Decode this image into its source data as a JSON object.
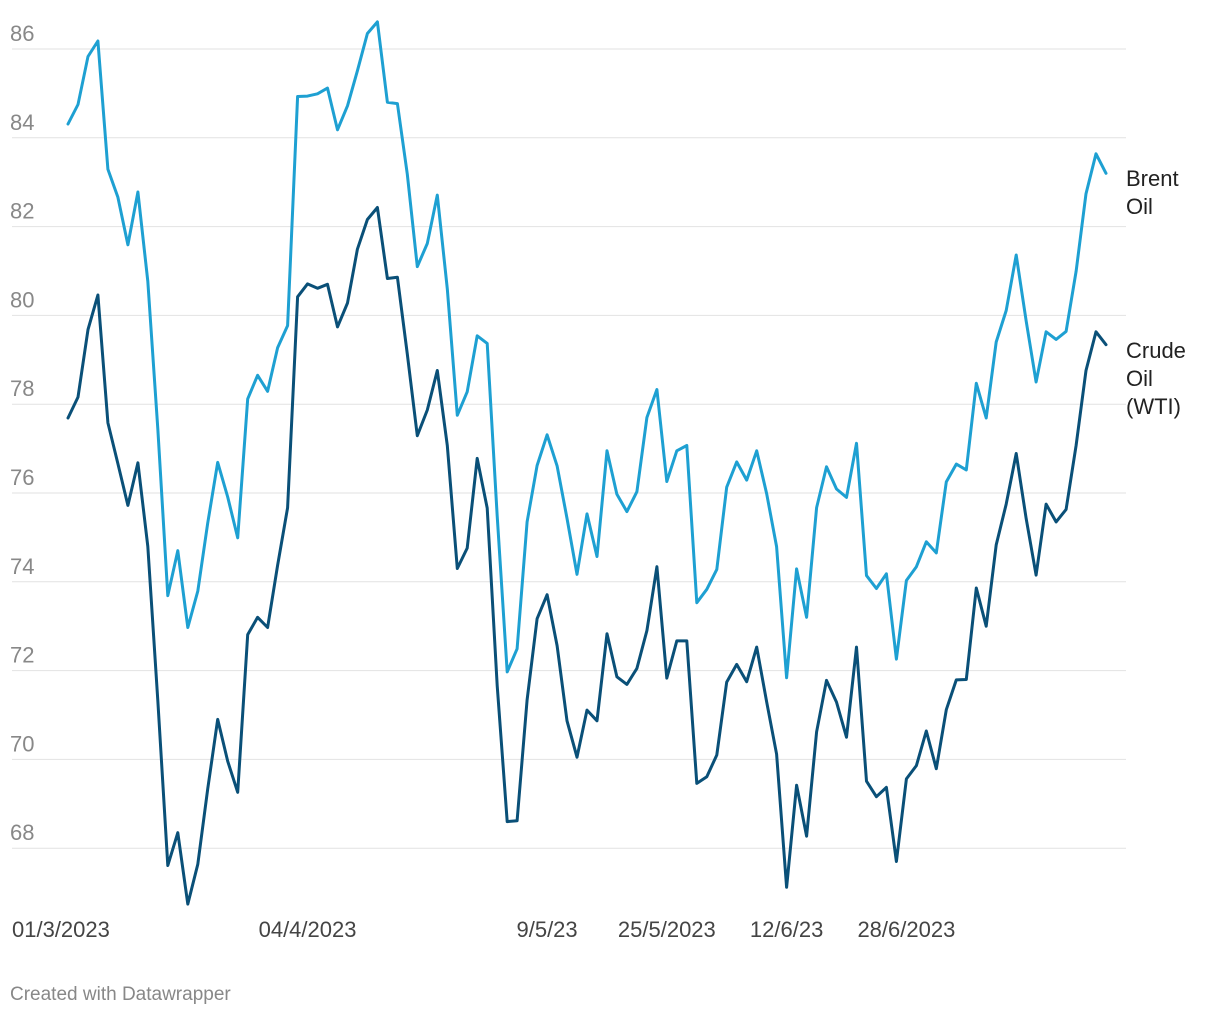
{
  "chart_data": {
    "type": "line",
    "title": "",
    "xlabel": "",
    "ylabel": "",
    "ylim": [
      66.5,
      87
    ],
    "yticks": [
      68,
      70,
      72,
      74,
      76,
      78,
      80,
      82,
      84,
      86
    ],
    "grid": true,
    "x_tick_labels": [
      {
        "label": "01/3/2023",
        "index": 0
      },
      {
        "label": "04/4/2023",
        "index": 24
      },
      {
        "label": "9/5/23",
        "index": 48
      },
      {
        "label": "25/5/2023",
        "index": 60
      },
      {
        "label": "12/6/23",
        "index": 72
      },
      {
        "label": "28/6/2023",
        "index": 84
      }
    ],
    "series": [
      {
        "name": "Brent Oil",
        "color": "#1ea0d2",
        "values": [
          84.31,
          84.75,
          85.83,
          86.18,
          83.29,
          82.66,
          81.59,
          82.78,
          80.77,
          77.45,
          73.69,
          74.7,
          72.97,
          73.79,
          75.32,
          76.69,
          75.91,
          74.99,
          78.12,
          78.65,
          78.29,
          79.27,
          79.77,
          84.93,
          84.94,
          84.99,
          85.12,
          84.18,
          84.72,
          85.51,
          86.35,
          86.61,
          84.8,
          84.77,
          83.18,
          81.1,
          81.62,
          82.71,
          80.6,
          77.75,
          78.28,
          79.54,
          79.37,
          75.48,
          71.97,
          72.49,
          75.35,
          76.62,
          77.31,
          76.61,
          75.43,
          74.17,
          75.53,
          74.57,
          76.95,
          75.97,
          75.58,
          76.03,
          77.7,
          78.33,
          76.26,
          76.95,
          77.07,
          73.53,
          73.83,
          74.28,
          76.13,
          76.7,
          76.29,
          76.95,
          75.98,
          74.79,
          71.84,
          74.29,
          73.2,
          75.67,
          76.59,
          76.09,
          75.9,
          77.12,
          74.14,
          73.85,
          74.18,
          72.26,
          74.03,
          74.34,
          74.9,
          74.65,
          76.25,
          76.65,
          76.52,
          78.47,
          77.69,
          79.4,
          80.11,
          81.36,
          79.87,
          78.5,
          79.63,
          79.46,
          79.64,
          80.99,
          82.74,
          83.64,
          83.2
        ]
      },
      {
        "name": "Crude Oil (WTI)",
        "color": "#0a5078",
        "values": [
          77.69,
          78.16,
          79.68,
          80.46,
          77.58,
          76.66,
          75.72,
          76.68,
          74.8,
          71.33,
          67.61,
          68.35,
          66.74,
          67.64,
          69.33,
          70.9,
          69.96,
          69.26,
          72.81,
          73.2,
          72.97,
          74.37,
          75.67,
          80.42,
          80.71,
          80.61,
          80.7,
          79.74,
          80.28,
          81.49,
          82.16,
          82.43,
          80.83,
          80.86,
          79.13,
          77.29,
          77.87,
          78.76,
          77.07,
          74.3,
          74.76,
          76.78,
          75.66,
          71.66,
          68.6,
          68.62,
          71.34,
          73.17,
          73.71,
          72.56,
          70.87,
          70.05,
          71.11,
          70.87,
          72.83,
          71.86,
          71.69,
          72.05,
          72.9,
          74.34,
          71.83,
          72.67,
          72.67,
          69.46,
          69.61,
          70.1,
          71.74,
          72.14,
          71.75,
          72.53,
          71.29,
          70.12,
          67.12,
          69.42,
          68.27,
          70.62,
          71.78,
          71.29,
          70.5,
          72.53,
          69.51,
          69.16,
          69.37,
          67.7,
          69.56,
          69.86,
          70.64,
          69.79,
          71.12,
          71.79,
          71.8,
          73.86,
          73.0,
          74.83,
          75.75,
          76.89,
          75.42,
          74.15,
          75.75,
          75.35,
          75.63,
          77.07,
          78.76,
          79.63,
          79.34
        ]
      }
    ]
  },
  "labels": {
    "brent": [
      "Brent",
      "Oil"
    ],
    "wti": [
      "Crude",
      "Oil",
      "(WTI)"
    ]
  },
  "footer": "Created with Datawrapper"
}
